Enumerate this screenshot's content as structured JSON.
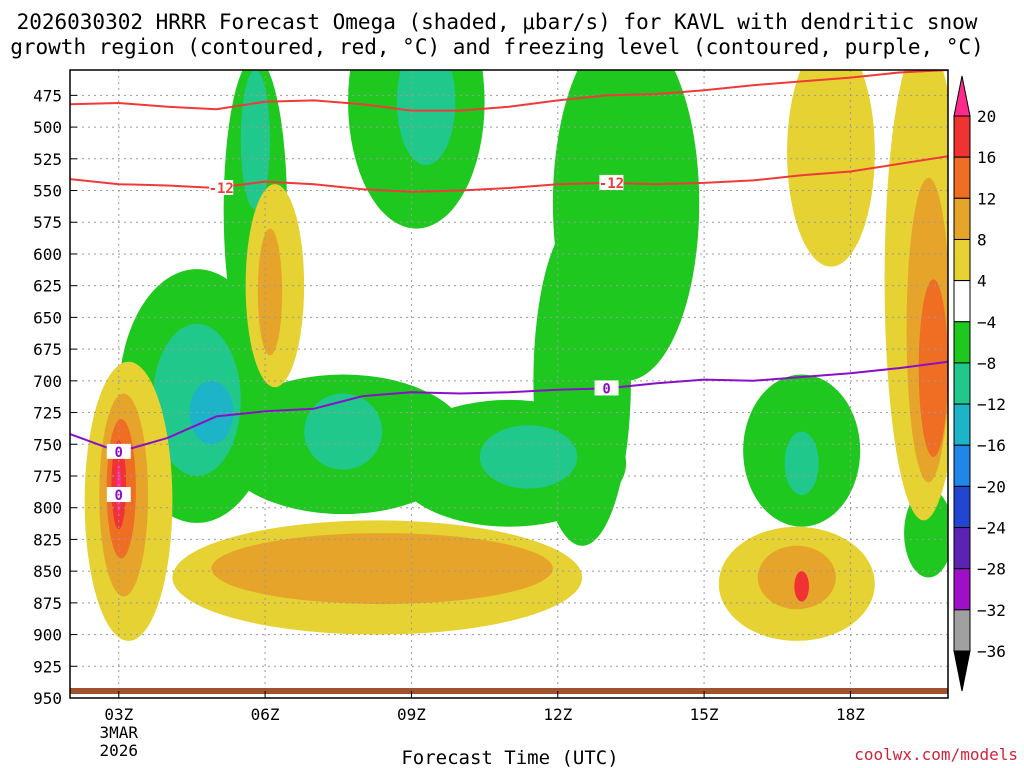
{
  "chart_data": {
    "type": "heatmap",
    "title_line1": "2026030302 HRRR Forecast Omega (shaded, μbar/s) for KAVL with dendritic snow",
    "title_line2": "growth region (contoured, red, °C) and freezing level (contoured, purple, °C)",
    "xlabel": "Forecast Time (UTC)",
    "credit": "coolwx.com/models",
    "xlim": [
      2,
      20
    ],
    "ylim": [
      950,
      455
    ],
    "x_ticks": [
      {
        "hour": 3,
        "label": "03Z",
        "sub1": "3MAR",
        "sub2": "2026"
      },
      {
        "hour": 6,
        "label": "06Z",
        "sub1": "",
        "sub2": ""
      },
      {
        "hour": 9,
        "label": "09Z",
        "sub1": "",
        "sub2": ""
      },
      {
        "hour": 12,
        "label": "12Z",
        "sub1": "",
        "sub2": ""
      },
      {
        "hour": 15,
        "label": "15Z",
        "sub1": "",
        "sub2": ""
      },
      {
        "hour": 18,
        "label": "18Z",
        "sub1": "",
        "sub2": ""
      }
    ],
    "y_ticks": [
      475,
      500,
      525,
      550,
      575,
      600,
      625,
      650,
      675,
      700,
      725,
      750,
      775,
      800,
      825,
      850,
      875,
      900,
      925,
      950
    ],
    "colorbar": {
      "labels": [
        "20",
        "16",
        "12",
        "8",
        "4",
        "−4",
        "−8",
        "−12",
        "−16",
        "−20",
        "−24",
        "−28",
        "−32",
        "−36"
      ],
      "colors": [
        "#ff2a8c",
        "#f03232",
        "#ef6e23",
        "#e6a52a",
        "#e6d232",
        "#ffffff",
        "#1ec81e",
        "#20c88c",
        "#1eb4c8",
        "#2087e8",
        "#2346d2",
        "#5a23b4",
        "#a00fc8",
        "#a0a0a0",
        "#000000"
      ]
    },
    "dgz_contours": [
      {
        "value": -12,
        "label": "-12",
        "points": [
          [
            2,
            541
          ],
          [
            3,
            545
          ],
          [
            4,
            546
          ],
          [
            5,
            548
          ],
          [
            6,
            543
          ],
          [
            7,
            545
          ],
          [
            8,
            549
          ],
          [
            9,
            551
          ],
          [
            10,
            550
          ],
          [
            11,
            548
          ],
          [
            12,
            545
          ],
          [
            13,
            544
          ],
          [
            14,
            545
          ],
          [
            15,
            544
          ],
          [
            16,
            542
          ],
          [
            17,
            538
          ],
          [
            18,
            535
          ],
          [
            19,
            529
          ],
          [
            20,
            523
          ]
        ]
      },
      {
        "value": -16,
        "label": "",
        "points": [
          [
            2,
            482
          ],
          [
            3,
            481
          ],
          [
            4,
            484
          ],
          [
            5,
            486
          ],
          [
            6,
            480
          ],
          [
            7,
            479
          ],
          [
            8,
            482
          ],
          [
            9,
            487
          ],
          [
            10,
            487
          ],
          [
            11,
            484
          ],
          [
            12,
            479
          ],
          [
            13,
            475
          ],
          [
            14,
            474
          ],
          [
            15,
            471
          ],
          [
            16,
            467
          ],
          [
            17,
            464
          ],
          [
            18,
            461
          ],
          [
            19,
            457
          ],
          [
            20,
            455
          ]
        ]
      }
    ],
    "freezing_level": {
      "value": 0,
      "label": "0",
      "points": [
        [
          2,
          742
        ],
        [
          3,
          756
        ],
        [
          4,
          745
        ],
        [
          5,
          728
        ],
        [
          6,
          724
        ],
        [
          7,
          722
        ],
        [
          8,
          712
        ],
        [
          9,
          709
        ],
        [
          10,
          710
        ],
        [
          11,
          709
        ],
        [
          12,
          707
        ],
        [
          13,
          706
        ],
        [
          14,
          702
        ],
        [
          15,
          699
        ],
        [
          16,
          700
        ],
        [
          17,
          697
        ],
        [
          18,
          694
        ],
        [
          19,
          690
        ],
        [
          20,
          685
        ]
      ]
    },
    "omega_regions": [
      {
        "level": -8,
        "color": "#1ec81e",
        "hour": 5.8,
        "p": 565,
        "rx": 0.65,
        "ry": 120
      },
      {
        "level": -8,
        "color": "#1ec81e",
        "hour": 9.1,
        "p": 480,
        "rx": 1.4,
        "ry": 100
      },
      {
        "level": -8,
        "color": "#1ec81e",
        "hour": 13.4,
        "p": 560,
        "rx": 1.5,
        "ry": 140
      },
      {
        "level": -8,
        "color": "#1ec81e",
        "hour": 12.5,
        "p": 700,
        "rx": 1.0,
        "ry": 130
      },
      {
        "level": -8,
        "color": "#1ec81e",
        "hour": 4.6,
        "p": 712,
        "rx": 1.6,
        "ry": 100
      },
      {
        "level": -8,
        "color": "#1ec81e",
        "hour": 7.6,
        "p": 750,
        "rx": 2.6,
        "ry": 55
      },
      {
        "level": -8,
        "color": "#1ec81e",
        "hour": 11.0,
        "p": 765,
        "rx": 2.4,
        "ry": 50
      },
      {
        "level": -8,
        "color": "#1ec81e",
        "hour": 17.0,
        "p": 755,
        "rx": 1.2,
        "ry": 60
      },
      {
        "level": -8,
        "color": "#1ec81e",
        "hour": 19.6,
        "p": 820,
        "rx": 0.5,
        "ry": 35
      },
      {
        "level": -12,
        "color": "#20c88c",
        "hour": 5.8,
        "p": 510,
        "rx": 0.3,
        "ry": 55
      },
      {
        "level": -12,
        "color": "#20c88c",
        "hour": 9.3,
        "p": 480,
        "rx": 0.6,
        "ry": 50
      },
      {
        "level": -12,
        "color": "#20c88c",
        "hour": 4.6,
        "p": 715,
        "rx": 0.9,
        "ry": 60
      },
      {
        "level": -12,
        "color": "#20c88c",
        "hour": 7.6,
        "p": 740,
        "rx": 0.8,
        "ry": 30
      },
      {
        "level": -12,
        "color": "#20c88c",
        "hour": 11.4,
        "p": 760,
        "rx": 1.0,
        "ry": 25
      },
      {
        "level": -12,
        "color": "#20c88c",
        "hour": 17.0,
        "p": 765,
        "rx": 0.35,
        "ry": 25
      },
      {
        "level": -16,
        "color": "#1eb4c8",
        "hour": 4.9,
        "p": 725,
        "rx": 0.45,
        "ry": 25
      },
      {
        "level": 4,
        "color": "#e6d232",
        "hour": 3.2,
        "p": 795,
        "rx": 0.9,
        "ry": 110
      },
      {
        "level": 4,
        "color": "#e6d232",
        "hour": 8.3,
        "p": 855,
        "rx": 4.2,
        "ry": 45
      },
      {
        "level": 4,
        "color": "#e6d232",
        "hour": 16.9,
        "p": 860,
        "rx": 1.6,
        "ry": 45
      },
      {
        "level": 4,
        "color": "#e6d232",
        "hour": 6.2,
        "p": 625,
        "rx": 0.6,
        "ry": 80
      },
      {
        "level": 4,
        "color": "#e6d232",
        "hour": 17.6,
        "p": 520,
        "rx": 0.9,
        "ry": 90
      },
      {
        "level": 4,
        "color": "#e6d232",
        "hour": 19.5,
        "p": 620,
        "rx": 0.8,
        "ry": 190
      },
      {
        "level": 8,
        "color": "#e6a52a",
        "hour": 3.1,
        "p": 790,
        "rx": 0.5,
        "ry": 80
      },
      {
        "level": 8,
        "color": "#e6a52a",
        "hour": 8.4,
        "p": 848,
        "rx": 3.5,
        "ry": 28
      },
      {
        "level": 8,
        "color": "#e6a52a",
        "hour": 16.9,
        "p": 855,
        "rx": 0.8,
        "ry": 25
      },
      {
        "level": 8,
        "color": "#e6a52a",
        "hour": 6.1,
        "p": 630,
        "rx": 0.25,
        "ry": 50
      },
      {
        "level": 8,
        "color": "#e6a52a",
        "hour": 19.6,
        "p": 660,
        "rx": 0.45,
        "ry": 120
      },
      {
        "level": 12,
        "color": "#ef6e23",
        "hour": 3.05,
        "p": 785,
        "rx": 0.3,
        "ry": 55
      },
      {
        "level": 12,
        "color": "#ef6e23",
        "hour": 19.7,
        "p": 690,
        "rx": 0.3,
        "ry": 70
      },
      {
        "level": 16,
        "color": "#f03232",
        "hour": 3.0,
        "p": 782,
        "rx": 0.15,
        "ry": 35
      },
      {
        "level": 16,
        "color": "#f03232",
        "hour": 17.0,
        "p": 862,
        "rx": 0.15,
        "ry": 12
      },
      {
        "level": 20,
        "color": "#ff2a8c",
        "hour": 3.0,
        "p": 785,
        "rx": 0.05,
        "ry": 20
      }
    ]
  }
}
